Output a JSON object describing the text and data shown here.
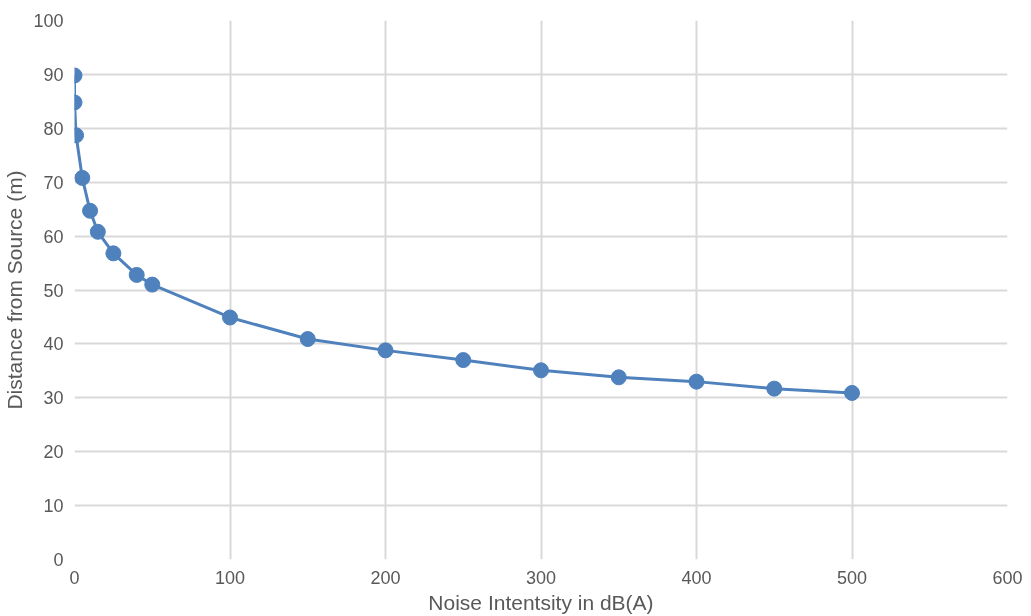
{
  "chart_data": {
    "type": "line",
    "xlabel": "Noise Intentsity in dB(A)",
    "ylabel": "Distance from Source (m)",
    "x": [
      0,
      0,
      1,
      5,
      10,
      15,
      25,
      40,
      50,
      100,
      150,
      200,
      250,
      300,
      350,
      400,
      450,
      500
    ],
    "series": [
      {
        "color": "#4f81bd",
        "values": [
          89.8,
          84.8,
          78.7,
          70.8,
          64.7,
          60.8,
          56.8,
          52.8,
          51,
          44.9,
          40.9,
          38.8,
          37,
          35.1,
          33.8,
          33,
          31.7,
          30.9
        ]
      }
    ],
    "xlim": [
      0,
      600
    ],
    "xticks": [
      0,
      100,
      200,
      300,
      400,
      500,
      600
    ],
    "ylim": [
      0,
      100
    ],
    "yticks": [
      0,
      10,
      20,
      30,
      40,
      50,
      60,
      70,
      80,
      90,
      100
    ],
    "grid": true,
    "marker": "circle",
    "line_style": "solid"
  }
}
